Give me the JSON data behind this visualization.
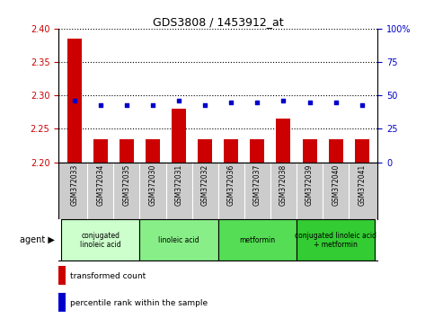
{
  "title": "GDS3808 / 1453912_at",
  "samples": [
    "GSM372033",
    "GSM372034",
    "GSM372035",
    "GSM372030",
    "GSM372031",
    "GSM372032",
    "GSM372036",
    "GSM372037",
    "GSM372038",
    "GSM372039",
    "GSM372040",
    "GSM372041"
  ],
  "bar_values": [
    2.385,
    2.235,
    2.235,
    2.235,
    2.28,
    2.235,
    2.235,
    2.235,
    2.265,
    2.235,
    2.235,
    2.235
  ],
  "dot_values": [
    46,
    43,
    43,
    43,
    46,
    43,
    45,
    45,
    46,
    45,
    45,
    43
  ],
  "ylim_left": [
    2.2,
    2.4
  ],
  "ylim_right": [
    0,
    100
  ],
  "yticks_left": [
    2.2,
    2.25,
    2.3,
    2.35,
    2.4
  ],
  "yticks_right": [
    0,
    25,
    50,
    75,
    100
  ],
  "ytick_labels_right": [
    "0",
    "25",
    "50",
    "75",
    "100%"
  ],
  "bar_color": "#cc0000",
  "dot_color": "#0000cc",
  "bar_bottom": 2.2,
  "agent_groups": [
    {
      "label": "conjugated\nlinoleic acid",
      "start": 0,
      "end": 3,
      "color": "#ccffcc"
    },
    {
      "label": "linoleic acid",
      "start": 3,
      "end": 6,
      "color": "#88ee88"
    },
    {
      "label": "metformin",
      "start": 6,
      "end": 9,
      "color": "#55dd55"
    },
    {
      "label": "conjugated linoleic acid\n+ metformin",
      "start": 9,
      "end": 12,
      "color": "#33cc33"
    }
  ],
  "legend_bar_label": "transformed count",
  "legend_dot_label": "percentile rank within the sample",
  "xlabel_agent": "agent",
  "grid_color": "#000000",
  "bg_color": "#ffffff",
  "sample_bg_color": "#cccccc"
}
